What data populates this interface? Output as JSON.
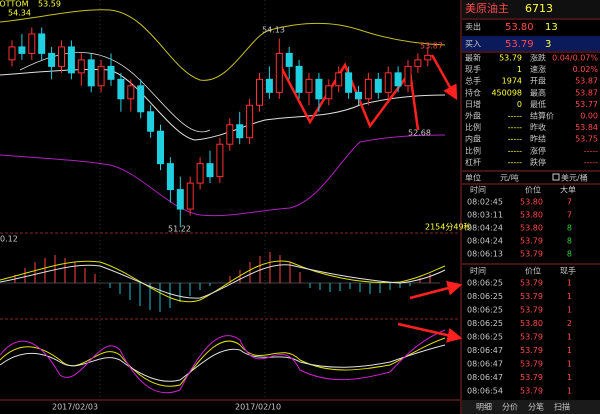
{
  "header": {
    "name": "美原油主",
    "code": "6713"
  },
  "quote": {
    "sell": [
      "卖出",
      "53.80",
      "13"
    ],
    "buy": [
      "买入",
      "53.79",
      "3"
    ]
  },
  "stats": [
    [
      "最新",
      "53.79",
      "涨跌",
      "0.04/0.07%"
    ],
    [
      "现手",
      "1",
      "速涨",
      "0.02%"
    ],
    [
      "总手",
      "1974",
      "开盘",
      "53.87"
    ],
    [
      "持仓",
      "450098",
      "最高",
      "53.87"
    ],
    [
      "日增",
      "0",
      "最低",
      "53.77"
    ],
    [
      "外盘",
      "-----",
      "结算价",
      "0.00"
    ],
    [
      "比例",
      "-----",
      "昨收",
      "53.84"
    ],
    [
      "内盘",
      "-----",
      "昨结",
      "53.75"
    ],
    [
      "比例",
      "-----",
      "涨停",
      "-----"
    ],
    [
      "杠杆",
      "-----",
      "跌停",
      "-----"
    ]
  ],
  "unit": [
    "单位",
    "元/吨",
    "美元/桶"
  ],
  "trades": {
    "columns": [
      "时间",
      "价位",
      "大单"
    ],
    "rows": [
      [
        "08:02:45",
        "53.80",
        "7"
      ],
      [
        "08:03:11",
        "53.80",
        "7"
      ],
      [
        "08:04:24",
        "53.80",
        "8"
      ],
      [
        "08:04:24",
        "53.79",
        "8"
      ],
      [
        "08:06:13",
        "53.79",
        "8"
      ]
    ]
  },
  "ticks": {
    "columns": [
      "时间",
      "价位",
      "现手"
    ],
    "rows": [
      [
        "08:06:25",
        "53.79",
        "1"
      ],
      [
        "08:06:25",
        "53.79",
        "1"
      ],
      [
        "08:06:25",
        "53.79",
        "1"
      ],
      [
        "08:06:25",
        "53.80",
        "2"
      ],
      [
        "08:06:25",
        "53.79",
        "1"
      ],
      [
        "08:06:47",
        "53.79",
        "1"
      ],
      [
        "08:06:47",
        "53.79",
        "1"
      ],
      [
        "08:06:47",
        "53.79",
        "1"
      ],
      [
        "08:06:54",
        "53.79",
        "1"
      ]
    ]
  },
  "tabs": [
    "明细",
    "分价",
    "分笔",
    "扫描"
  ],
  "kline": {
    "indicator": "BOTTOM",
    "indicator_values": [
      "53.59",
      "54.34"
    ],
    "labels": [
      "54.13",
      "53.87",
      "52.68",
      "51.22",
      "2154分49秒"
    ],
    "ylim": [
      51.1,
      54.6
    ],
    "candles": [
      [
        53.8,
        54.0,
        54.1,
        53.7
      ],
      [
        54.0,
        53.9,
        54.2,
        53.8
      ],
      [
        53.9,
        54.2,
        54.3,
        53.8
      ],
      [
        54.2,
        53.9,
        54.3,
        53.8
      ],
      [
        53.9,
        53.7,
        54.0,
        53.5
      ],
      [
        53.7,
        54.0,
        54.1,
        53.6
      ],
      [
        54.0,
        53.6,
        54.1,
        53.5
      ],
      [
        53.6,
        53.8,
        53.9,
        53.4
      ],
      [
        53.8,
        53.4,
        53.9,
        53.3
      ],
      [
        53.4,
        53.7,
        53.8,
        53.3
      ],
      [
        53.7,
        53.5,
        53.9,
        53.4
      ],
      [
        53.5,
        53.2,
        53.6,
        53.0
      ],
      [
        53.2,
        53.4,
        53.5,
        53.0
      ],
      [
        53.4,
        53.0,
        53.5,
        52.9
      ],
      [
        53.0,
        52.7,
        53.1,
        52.6
      ],
      [
        52.7,
        52.2,
        52.8,
        52.1
      ],
      [
        52.2,
        51.8,
        52.3,
        51.6
      ],
      [
        51.8,
        51.5,
        52.0,
        51.22
      ],
      [
        51.5,
        51.9,
        52.0,
        51.4
      ],
      [
        51.9,
        52.2,
        52.3,
        51.8
      ],
      [
        52.2,
        52.0,
        52.4,
        51.9
      ],
      [
        52.0,
        52.5,
        52.6,
        51.9
      ],
      [
        52.5,
        52.8,
        52.9,
        52.4
      ],
      [
        52.8,
        52.6,
        53.0,
        52.5
      ],
      [
        52.6,
        53.1,
        53.2,
        52.5
      ],
      [
        53.1,
        53.5,
        53.6,
        53.0
      ],
      [
        53.5,
        53.3,
        53.7,
        53.2
      ],
      [
        53.3,
        53.9,
        54.13,
        53.2
      ],
      [
        53.9,
        53.7,
        54.0,
        53.5
      ],
      [
        53.7,
        53.3,
        53.8,
        53.2
      ],
      [
        53.3,
        53.5,
        53.6,
        53.1
      ],
      [
        53.5,
        53.2,
        53.6,
        53.0
      ],
      [
        53.2,
        53.4,
        53.5,
        53.1
      ],
      [
        53.4,
        53.6,
        53.7,
        53.3
      ],
      [
        53.6,
        53.3,
        53.7,
        53.2
      ],
      [
        53.3,
        53.2,
        53.4,
        53.1
      ],
      [
        53.2,
        53.5,
        53.6,
        53.1
      ],
      [
        53.5,
        53.3,
        53.6,
        53.2
      ],
      [
        53.3,
        53.6,
        53.7,
        53.2
      ],
      [
        53.6,
        53.4,
        53.7,
        53.3
      ],
      [
        53.4,
        53.7,
        53.8,
        53.3
      ],
      [
        53.7,
        53.8,
        53.9,
        53.6
      ],
      [
        53.8,
        53.87,
        54.0,
        53.7
      ]
    ]
  },
  "macd": {
    "label": "0.12"
  },
  "dates": [
    "2017/02/03",
    "2017/02/10"
  ]
}
